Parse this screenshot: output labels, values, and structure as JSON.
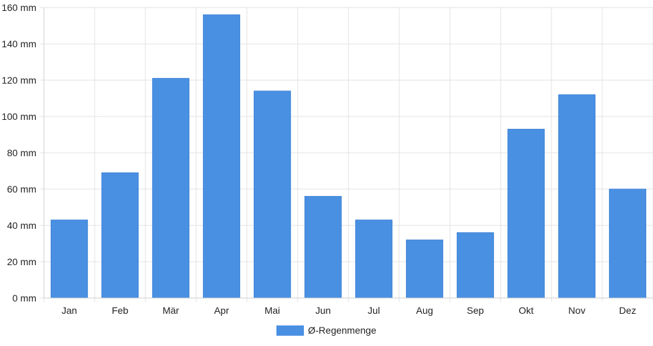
{
  "chart_data": {
    "type": "bar",
    "categories": [
      "Jan",
      "Feb",
      "Mär",
      "Apr",
      "Mai",
      "Jun",
      "Jul",
      "Aug",
      "Sep",
      "Okt",
      "Nov",
      "Dez"
    ],
    "series": [
      {
        "name": "Ø-Regenmenge",
        "values": [
          43,
          69,
          121,
          156,
          114,
          56,
          43,
          32,
          36,
          93,
          112,
          60
        ]
      }
    ],
    "y_ticks": [
      "0 mm",
      "20 mm",
      "40 mm",
      "60 mm",
      "80 mm",
      "100 mm",
      "120 mm",
      "140 mm",
      "160 mm"
    ],
    "ylim": [
      0,
      160
    ],
    "y_step": 20,
    "grid": true,
    "legend_position": "bottom-center",
    "colors": {
      "bar": "#4a90e2",
      "grid": "#e3e3e3",
      "axis": "#cfcfcf"
    }
  }
}
